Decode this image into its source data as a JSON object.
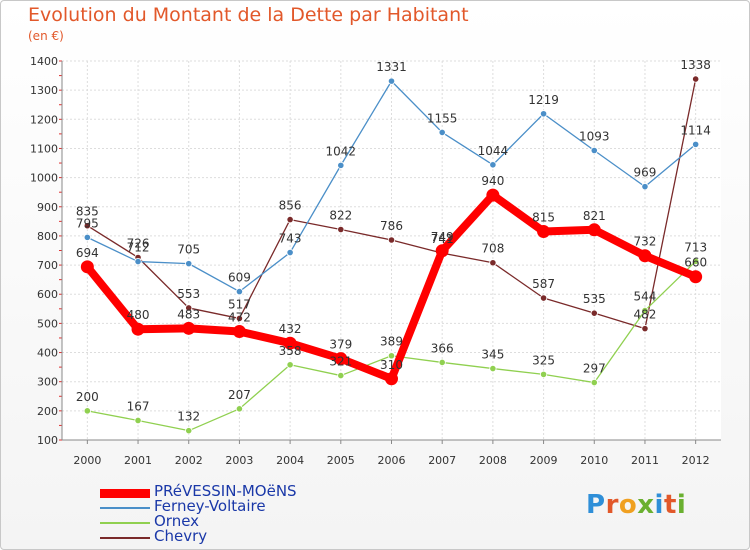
{
  "title": "Evolution du Montant de la Dette par Habitant",
  "subtitle": "(en €)",
  "logo": {
    "text": "Proxiti",
    "colors": [
      "#2f8fd8",
      "#e2582a",
      "#f0a020",
      "#6ab030",
      "#2f8fd8",
      "#e2582a",
      "#6ab030"
    ]
  },
  "chart_data": {
    "type": "line",
    "title": "Evolution du Montant de la Dette par Habitant",
    "ylabel": "(en €)",
    "x": [
      "2000",
      "2001",
      "2002",
      "2003",
      "2004",
      "2005",
      "2006",
      "2007",
      "2008",
      "2009",
      "2010",
      "2011",
      "2012"
    ],
    "ylim": [
      100,
      1400
    ],
    "yticks": [
      100,
      200,
      300,
      400,
      500,
      600,
      700,
      800,
      900,
      1000,
      1100,
      1200,
      1300,
      1400
    ],
    "grid": true,
    "legend_position": "bottom-left",
    "series": [
      {
        "name": "PRéVESSIN-MOëNS",
        "color": "#ff0000",
        "values": [
          694,
          480,
          483,
          472,
          432,
          379,
          310,
          749,
          940,
          815,
          821,
          732,
          660
        ],
        "labels": [
          "694",
          "480",
          "483",
          "472",
          "432",
          "379",
          "310",
          "749",
          "940",
          "815",
          "821",
          "732",
          "660"
        ]
      },
      {
        "name": "Ferney-Voltaire",
        "color": "#4b8fc8",
        "values": [
          795,
          712,
          705,
          609,
          743,
          1042,
          1331,
          1155,
          1044,
          1219,
          1093,
          969,
          1114
        ],
        "labels": [
          "795",
          "712",
          "705",
          "609",
          "743",
          "1042",
          "1331",
          "1155",
          "1044",
          "1219",
          "1093",
          "969",
          "1114"
        ]
      },
      {
        "name": "Ornex",
        "color": "#90d050",
        "values": [
          200,
          167,
          132,
          207,
          358,
          321,
          389,
          366,
          345,
          325,
          297,
          544,
          713
        ],
        "labels": [
          "200",
          "167",
          "132",
          "207",
          "358",
          "321",
          "389",
          "366",
          "345",
          "325",
          "297",
          "544",
          "713"
        ]
      },
      {
        "name": "Chevry",
        "color": "#7a2a2a",
        "values": [
          835,
          726,
          553,
          517,
          856,
          822,
          786,
          741,
          708,
          587,
          535,
          482,
          1338
        ],
        "labels": [
          "835",
          "726",
          "553",
          "517",
          "856",
          "822",
          "786",
          "741",
          "708",
          "587",
          "535",
          "482",
          "1338"
        ]
      }
    ]
  }
}
